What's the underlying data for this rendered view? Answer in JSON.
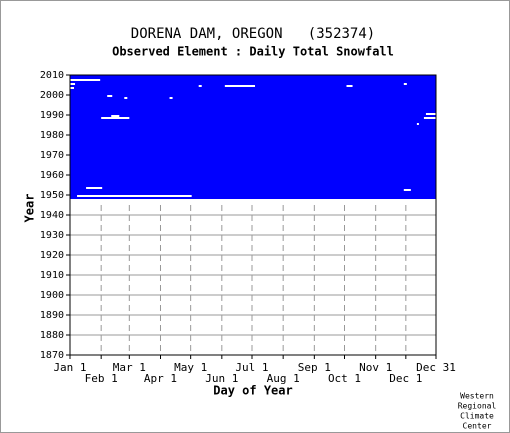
{
  "chart_data": {
    "type": "coverage",
    "title": "DORENA DAM, OREGON   (352374)",
    "subtitle": "Observed Element : Daily Total Snowfall",
    "x_label": "Day of Year",
    "y_label": "Year",
    "color": "#0000ff",
    "gap_color": "#ffffff",
    "xlim": [
      1,
      365
    ],
    "xticks": [
      {
        "value": 1,
        "label": "Jan 1"
      },
      {
        "value": 32,
        "label": "Feb 1"
      },
      {
        "value": 60,
        "label": "Mar 1"
      },
      {
        "value": 91,
        "label": "Apr 1"
      },
      {
        "value": 121,
        "label": "May 1"
      },
      {
        "value": 152,
        "label": "Jun 1"
      },
      {
        "value": 182,
        "label": "Jul 1"
      },
      {
        "value": 213,
        "label": "Aug 1"
      },
      {
        "value": 244,
        "label": "Sep 1"
      },
      {
        "value": 274,
        "label": "Oct 1"
      },
      {
        "value": 305,
        "label": "Nov 1"
      },
      {
        "value": 335,
        "label": "Dec 1"
      },
      {
        "value": 365,
        "label": "Dec 31"
      }
    ],
    "ylim": [
      1870,
      2010
    ],
    "yticks": [
      1870,
      1880,
      1890,
      1900,
      1910,
      1920,
      1930,
      1940,
      1950,
      1960,
      1970,
      1980,
      1990,
      2000,
      2010
    ],
    "grid": true,
    "coverage": [
      {
        "year_start": 1947,
        "year_end": 2010,
        "day_start": 1,
        "day_end": 365
      }
    ],
    "gaps": [
      {
        "year": 2007,
        "day_start": 1,
        "day_end": 31
      },
      {
        "year": 2005,
        "day_start": 1,
        "day_end": 6
      },
      {
        "year": 2003,
        "day_start": 1,
        "day_end": 5
      },
      {
        "year": 1999,
        "day_start": 38,
        "day_end": 43
      },
      {
        "year": 1998,
        "day_start": 55,
        "day_end": 58
      },
      {
        "year": 1988,
        "day_start": 32,
        "day_end": 60
      },
      {
        "year": 1989,
        "day_start": 42,
        "day_end": 50
      },
      {
        "year": 1998,
        "day_start": 100,
        "day_end": 103
      },
      {
        "year": 2004,
        "day_start": 129,
        "day_end": 132
      },
      {
        "year": 2004,
        "day_start": 155,
        "day_end": 185
      },
      {
        "year": 2004,
        "day_start": 276,
        "day_end": 282
      },
      {
        "year": 2005,
        "day_start": 333,
        "day_end": 336
      },
      {
        "year": 1990,
        "day_start": 355,
        "day_end": 365
      },
      {
        "year": 1988,
        "day_start": 353,
        "day_end": 365
      },
      {
        "year": 1985,
        "day_start": 346,
        "day_end": 348
      },
      {
        "year": 1953,
        "day_start": 17,
        "day_end": 33
      },
      {
        "year": 1952,
        "day_start": 333,
        "day_end": 340
      },
      {
        "year": 1949,
        "day_start": 8,
        "day_end": 122
      },
      {
        "year": 1947,
        "day_start": 1,
        "day_end": 182
      },
      {
        "year": 1947,
        "day_start": 182,
        "day_end": 365
      }
    ],
    "credit": [
      "Western",
      "Regional",
      "Climate",
      "Center"
    ]
  }
}
